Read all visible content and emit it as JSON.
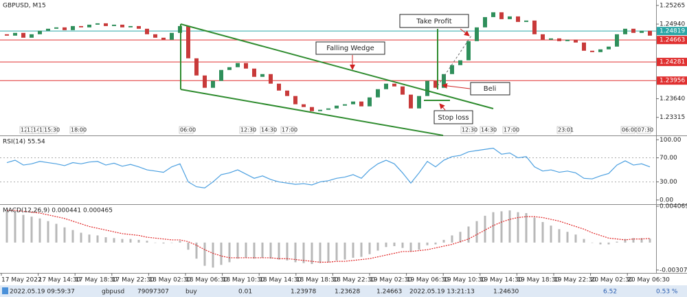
{
  "chart_data": [
    {
      "type": "candlestick",
      "title": "GBPUSD, M15",
      "open": [
        1.24763,
        1.24739,
        1.24787,
        1.24703,
        1.24763,
        1.24823,
        1.24859,
        1.24883,
        1.24835,
        1.24906,
        1.24883,
        1.2493,
        1.24954,
        1.24906,
        1.2493,
        1.24883,
        1.24906,
        1.24859,
        1.24763,
        1.24703,
        1.24667,
        1.24787,
        1.24906,
        1.24344,
        1.24045,
        1.2383,
        1.2395,
        1.24141,
        1.24189,
        1.24261,
        1.24165,
        1.24021,
        1.24069,
        1.23902,
        1.23782,
        1.23687,
        1.23543,
        1.23495,
        1.23423,
        1.23447,
        1.23471,
        1.23519,
        1.23543,
        1.23591,
        1.23507,
        1.23663,
        1.23806,
        1.23902,
        1.23854,
        1.23711,
        1.23471,
        1.23687,
        1.2395,
        1.2383,
        1.24069,
        1.24225,
        1.24309,
        1.24643,
        1.24883,
        1.25062,
        1.25146,
        1.25026,
        1.25074,
        1.24978,
        1.25002,
        1.24763,
        1.24667,
        1.24691,
        1.24643,
        1.24667,
        1.24619,
        1.24476,
        1.24452,
        1.245,
        1.24548,
        1.24763,
        1.24859,
        1.24787,
        1.24823
      ],
      "close": [
        1.24739,
        1.24787,
        1.24703,
        1.24763,
        1.24823,
        1.24859,
        1.24883,
        1.24835,
        1.24906,
        1.24883,
        1.2493,
        1.24954,
        1.24906,
        1.2493,
        1.24883,
        1.24906,
        1.24859,
        1.24763,
        1.24703,
        1.24667,
        1.24787,
        1.24906,
        1.24344,
        1.24045,
        1.2383,
        1.2395,
        1.24141,
        1.24189,
        1.24261,
        1.24165,
        1.24021,
        1.24069,
        1.23902,
        1.23782,
        1.23687,
        1.23543,
        1.23495,
        1.23423,
        1.23447,
        1.23471,
        1.23519,
        1.23543,
        1.23591,
        1.23507,
        1.23663,
        1.23806,
        1.23902,
        1.23854,
        1.23711,
        1.23471,
        1.23687,
        1.2395,
        1.2383,
        1.24069,
        1.24225,
        1.24309,
        1.24643,
        1.24883,
        1.25062,
        1.25146,
        1.25026,
        1.25074,
        1.24978,
        1.25002,
        1.24763,
        1.24667,
        1.24691,
        1.24643,
        1.24667,
        1.24619,
        1.24476,
        1.24452,
        1.245,
        1.24548,
        1.24763,
        1.24859,
        1.24787,
        1.24823,
        1.24739
      ],
      "up_color": "#2f8f5b",
      "down_color": "#c83a3a",
      "ylim": [
        1.23,
        1.2536
      ],
      "yticks": [
        1.25265,
        {
          "value": 1.2494,
          "label": "1.24940"
        },
        {
          "value": 1.2364,
          "label": "1.23640"
        },
        1.23315
      ],
      "levels": [
        1.24819,
        1.24663,
        1.24281,
        1.23956
      ],
      "level_colors": [
        "#2aa6a6",
        "#e03030",
        "#e03030",
        "#e03030"
      ],
      "annotations": [
        "Take Profit",
        "Falling Wedge",
        "Beli",
        "Stop loss"
      ],
      "period_labels": [
        "12",
        "13",
        "14",
        "1",
        "15:30",
        "18:00",
        "06:00",
        "12:30",
        "14:30",
        "17:00",
        "12:30",
        "14:30",
        "17:00",
        "23:01",
        "06:00",
        "07:30"
      ]
    },
    {
      "type": "line",
      "title": "RSI(14) 55.54",
      "values": [
        62,
        66,
        58,
        60,
        64,
        62,
        60,
        57,
        62,
        60,
        63,
        64,
        58,
        61,
        56,
        59,
        55,
        50,
        48,
        46,
        55,
        60,
        30,
        22,
        20,
        30,
        42,
        45,
        50,
        43,
        36,
        40,
        34,
        30,
        28,
        26,
        27,
        25,
        30,
        32,
        36,
        38,
        42,
        36,
        50,
        60,
        66,
        60,
        45,
        28,
        45,
        64,
        55,
        66,
        72,
        74,
        80,
        82,
        84,
        86,
        76,
        78,
        70,
        72,
        55,
        48,
        50,
        46,
        48,
        45,
        36,
        35,
        40,
        44,
        58,
        65,
        58,
        60,
        55
      ],
      "color": "#4a9fe0",
      "ylim": [
        -7,
        106
      ],
      "yticks": [
        {
          "value": 100,
          "label": "100.00"
        },
        {
          "value": 70,
          "label": "70.00"
        },
        {
          "value": 30,
          "label": "30.00"
        },
        {
          "value": 0,
          "label": "0.00"
        }
      ],
      "levels": [
        70,
        30
      ]
    },
    {
      "type": "macd",
      "title": "MACD(12,26,9) 0.000441 0.000465",
      "histogram": [
        0.0035,
        0.0034,
        0.0031,
        0.0029,
        0.0027,
        0.0024,
        0.0021,
        0.0017,
        0.0014,
        0.0011,
        0.0009,
        0.0008,
        0.0006,
        0.0005,
        0.0004,
        0.0004,
        0.0003,
        0.0002,
        0,
        -0.0001,
        0,
        0.0002,
        -0.0008,
        -0.0018,
        -0.0026,
        -0.0028,
        -0.0025,
        -0.0022,
        -0.0018,
        -0.0017,
        -0.0018,
        -0.0017,
        -0.0018,
        -0.0019,
        -0.002,
        -0.0022,
        -0.0023,
        -0.0024,
        -0.0023,
        -0.0022,
        -0.002,
        -0.0019,
        -0.0017,
        -0.0016,
        -0.0013,
        -0.0009,
        -0.0005,
        -0.0004,
        -0.0006,
        -0.001,
        -0.0008,
        -0.0003,
        -0.0002,
        0.0003,
        0.0008,
        0.0012,
        0.0018,
        0.0024,
        0.003,
        0.0034,
        0.0035,
        0.0036,
        0.0034,
        0.0033,
        0.0028,
        0.0023,
        0.0019,
        0.0015,
        0.0012,
        0.0009,
        0.0004,
        0,
        -0.0002,
        -0.0002,
        0.0001,
        0.0004,
        0.0005,
        0.0005,
        0.000441
      ],
      "signal": [
        0.0036,
        0.0036,
        0.0035,
        0.0034,
        0.0033,
        0.0031,
        0.0029,
        0.0027,
        0.0024,
        0.0021,
        0.0018,
        0.0016,
        0.0014,
        0.0012,
        0.001,
        0.0009,
        0.0008,
        0.0006,
        0.0005,
        0.0004,
        0.0003,
        0.0003,
        0.0001,
        -0.0003,
        -0.0008,
        -0.0012,
        -0.0015,
        -0.0017,
        -0.0017,
        -0.0017,
        -0.0017,
        -0.0017,
        -0.0017,
        -0.0018,
        -0.0018,
        -0.0019,
        -0.002,
        -0.0021,
        -0.0022,
        -0.0022,
        -0.0021,
        -0.0021,
        -0.002,
        -0.0019,
        -0.0018,
        -0.0016,
        -0.0014,
        -0.0012,
        -0.001,
        -0.001,
        -0.0009,
        -0.0008,
        -0.0006,
        -0.0004,
        -0.0002,
        0.0001,
        0.0004,
        0.0009,
        0.0014,
        0.0019,
        0.0023,
        0.0026,
        0.0028,
        0.0029,
        0.0029,
        0.0028,
        0.0026,
        0.0024,
        0.0021,
        0.0018,
        0.0015,
        0.0011,
        0.0008,
        0.0005,
        0.0004,
        0.0003,
        0.0004,
        0.0004,
        0.000465
      ],
      "histogram_color": "#b8b8b8",
      "signal_color": "#e02020",
      "ylim": [
        -0.0034,
        0.00422
      ],
      "yticks": [
        0.004069,
        -0.003078
      ]
    }
  ],
  "time_labels": [
    "17 May 2022",
    "17 May 14:30",
    "17 May 18:30",
    "17 May 22:30",
    "18 May 02:30",
    "18 May 06:30",
    "18 May 10:30",
    "18 May 14:30",
    "18 May 18:30",
    "18 May 22:30",
    "19 May 02:30",
    "19 May 06:30",
    "19 May 10:30",
    "19 May 14:30",
    "19 May 18:30",
    "19 May 22:30",
    "20 May 02:30",
    "20 May 06:30"
  ],
  "status_bar": {
    "cells": [
      "2022.05.19 09:59:37",
      "gbpusd",
      "79097307",
      "buy",
      "0.01",
      "1.23978",
      "1.23628",
      "1.24663",
      "2022.05.19 13:21:13",
      "1.24630",
      "6.52",
      "0.53 %"
    ]
  }
}
